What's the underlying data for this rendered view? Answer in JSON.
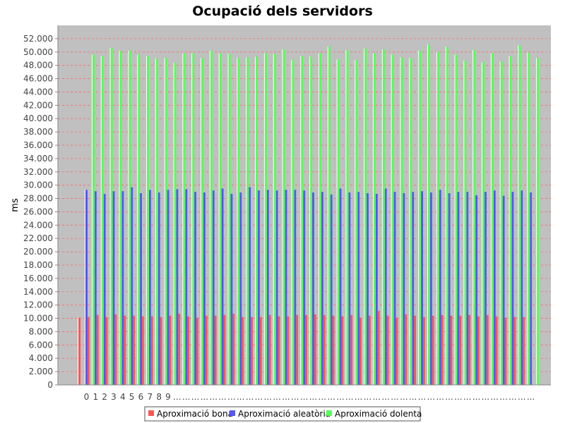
{
  "chart_data": {
    "type": "bar",
    "title": "Ocupació dels servidors",
    "xlabel": "",
    "ylabel": "ms",
    "ylim": [
      0,
      54000
    ],
    "yticks": [
      0,
      2000,
      4000,
      6000,
      8000,
      10000,
      12000,
      14000,
      16000,
      18000,
      20000,
      22000,
      24000,
      26000,
      28000,
      30000,
      32000,
      34000,
      36000,
      38000,
      40000,
      42000,
      44000,
      46000,
      48000,
      50000,
      52000
    ],
    "ytick_labels": [
      "0",
      "2.000",
      "4.000",
      "6.000",
      "8.000",
      "10.000",
      "12.000",
      "14.000",
      "16.000",
      "18.000",
      "20.000",
      "22.000",
      "24.000",
      "26.000",
      "28.000",
      "30.000",
      "32.000",
      "34.000",
      "36.000",
      "38.000",
      "40.000",
      "42.000",
      "44.000",
      "46.000",
      "48.000",
      "50.000",
      "52.000"
    ],
    "grid": true,
    "legend_position": "bottom",
    "categories": [
      "0",
      "1",
      "2",
      "3",
      "4",
      "5",
      "6",
      "7",
      "8",
      "9",
      "...",
      "...",
      "...",
      "...",
      "...",
      "...",
      "...",
      "...",
      "...",
      "...",
      "...",
      "...",
      "...",
      "...",
      "...",
      "...",
      "...",
      "...",
      "...",
      "...",
      "...",
      "...",
      "...",
      "...",
      "...",
      "...",
      "...",
      "...",
      "...",
      "...",
      "...",
      "...",
      "...",
      "...",
      "...",
      "...",
      "...",
      "...",
      "...",
      "..."
    ],
    "series": [
      {
        "name": "Aproximació bona",
        "color": "#ff5555",
        "values": [
          10100,
          10200,
          10500,
          10200,
          10600,
          10400,
          10400,
          10300,
          10300,
          10200,
          10400,
          10700,
          10300,
          10100,
          10400,
          10400,
          10500,
          10700,
          10200,
          10200,
          10200,
          10500,
          10300,
          10300,
          10500,
          10500,
          10600,
          10500,
          10400,
          10300,
          10500,
          10100,
          10400,
          11100,
          10400,
          10100,
          10600,
          10400,
          10200,
          10400,
          10500,
          10400,
          10400,
          10500,
          10300,
          10500,
          10300,
          10100,
          10200,
          10200
        ]
      },
      {
        "name": "Aproximació aleatòria",
        "color": "#5555ff",
        "values": [
          29300,
          29100,
          28700,
          29100,
          29100,
          29700,
          28800,
          29300,
          28900,
          29300,
          29400,
          29400,
          29000,
          28900,
          29200,
          29500,
          28700,
          28900,
          29700,
          29200,
          29300,
          29200,
          29300,
          29300,
          29200,
          28900,
          29000,
          28600,
          29500,
          28900,
          29000,
          28800,
          28700,
          29500,
          29000,
          28800,
          29000,
          29100,
          28900,
          29300,
          28800,
          29000,
          29000,
          28500,
          29000,
          29200,
          28400,
          29000,
          29200,
          28900
        ]
      },
      {
        "name": "Aproximació dolenta",
        "color": "#55ff55",
        "values": [
          49600,
          49400,
          50600,
          50200,
          50200,
          49600,
          49400,
          49000,
          49100,
          48400,
          49800,
          49800,
          49100,
          50200,
          49800,
          49700,
          49100,
          49200,
          49300,
          49800,
          49700,
          50400,
          48800,
          49400,
          49300,
          49800,
          50800,
          48900,
          50300,
          48800,
          50500,
          49800,
          50400,
          49600,
          49200,
          49100,
          50200,
          51100,
          50000,
          50800,
          49600,
          48700,
          50300,
          48500,
          49800,
          48600,
          49400,
          51000,
          49900,
          49100
        ]
      }
    ]
  }
}
